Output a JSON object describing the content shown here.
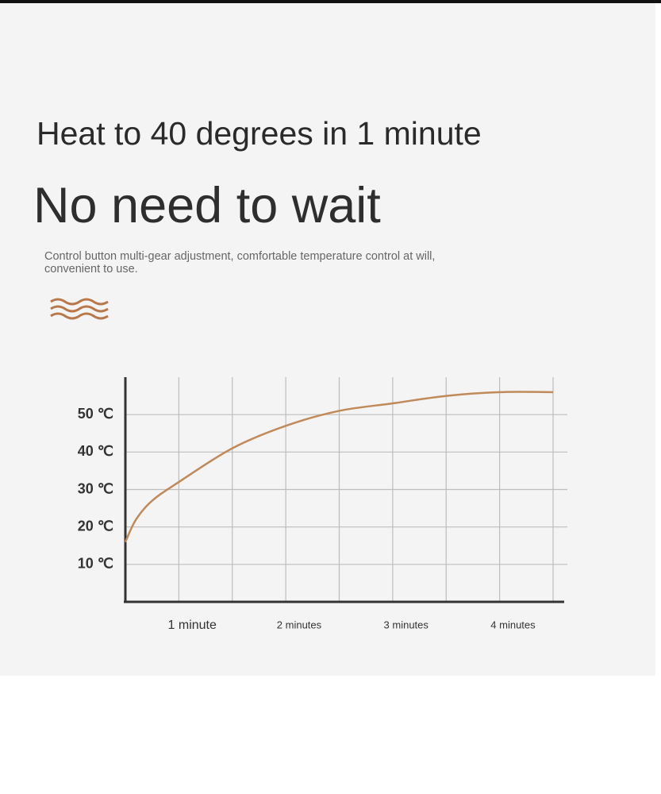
{
  "header": {
    "title": "Heat to 40 degrees in 1 minute",
    "headline": "No need to wait",
    "description": "Control button multi-gear adjustment, comfortable temperature control at will, convenient to use."
  },
  "chart_data": {
    "type": "line",
    "color": "#c08a5a",
    "x": [
      0,
      0.1,
      0.25,
      0.5,
      1,
      1.5,
      2,
      2.5,
      3,
      3.5,
      4
    ],
    "values": [
      16,
      22,
      27,
      32,
      41,
      47,
      51,
      53,
      55,
      56,
      56
    ],
    "xlim": [
      0,
      4
    ],
    "ylim": [
      0,
      60
    ],
    "xticks": [
      {
        "value": 1,
        "label": "1 minute"
      },
      {
        "value": 2,
        "label": "2 minutes"
      },
      {
        "value": 3,
        "label": "3 minutes"
      },
      {
        "value": 4,
        "label": "4 minutes"
      }
    ],
    "yticks": [
      {
        "value": 10,
        "label": "10 ℃"
      },
      {
        "value": 20,
        "label": "20 ℃"
      },
      {
        "value": 30,
        "label": "30 ℃"
      },
      {
        "value": 40,
        "label": "40 ℃"
      },
      {
        "value": 50,
        "label": "50 ℃"
      }
    ],
    "grid": true
  }
}
